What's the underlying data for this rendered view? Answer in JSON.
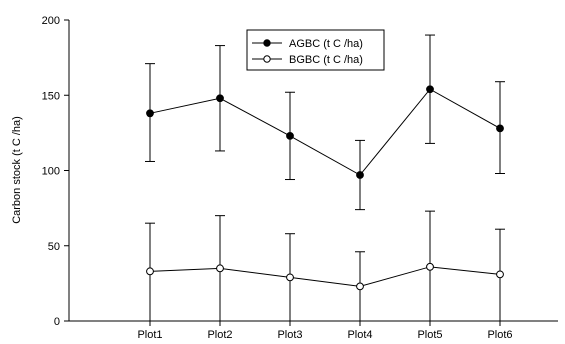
{
  "chart_data": {
    "type": "line",
    "categories": [
      "Plot1",
      "Plot2",
      "Plot3",
      "Plot4",
      "Plot5",
      "Plot6"
    ],
    "ylabel": "Carbon stock  (t C /ha)",
    "xlabel": "",
    "ylim": [
      0,
      200
    ],
    "yticks": [
      0,
      50,
      100,
      150,
      200
    ],
    "grid": false,
    "legend_position": "top-center",
    "series": [
      {
        "name": "AGBC (t C /ha)",
        "marker": "filled-circle",
        "color": "#000000",
        "values": [
          138,
          148,
          123,
          97,
          154,
          128
        ],
        "error_low": [
          106,
          113,
          94,
          74,
          118,
          98
        ],
        "error_high": [
          171,
          183,
          152,
          120,
          190,
          159
        ]
      },
      {
        "name": "BGBC (t C /ha)",
        "marker": "open-circle",
        "color": "#000000",
        "values": [
          33,
          35,
          29,
          23,
          36,
          31
        ],
        "error_low": [
          0,
          0,
          0,
          0,
          0,
          0
        ],
        "error_high": [
          65,
          70,
          58,
          46,
          73,
          61
        ]
      }
    ]
  }
}
